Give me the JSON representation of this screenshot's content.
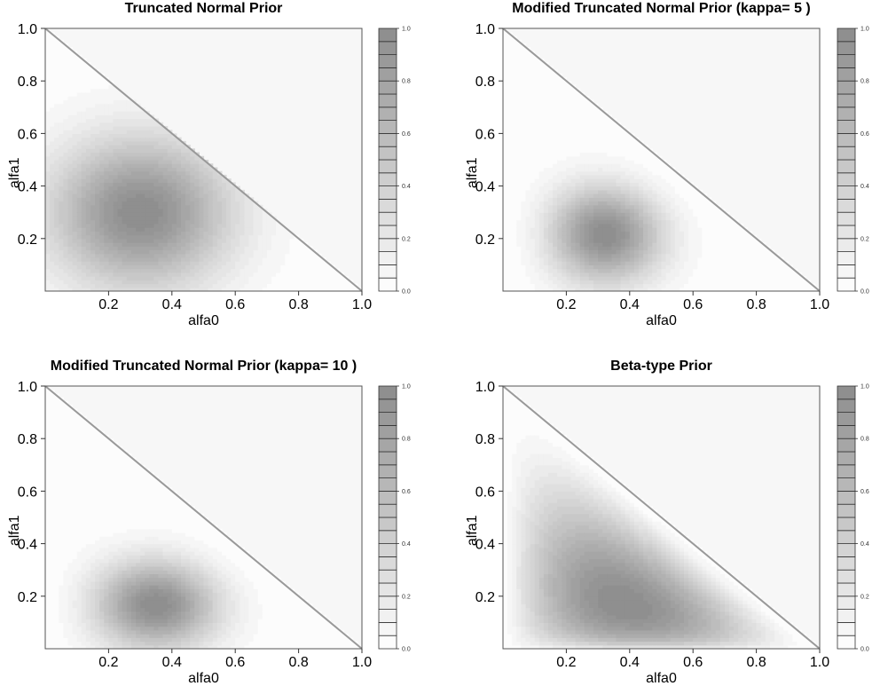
{
  "chart_data": [
    {
      "type": "contour",
      "title": "Truncated Normal Prior",
      "xlabel": "alfa0",
      "ylabel": "alfa1",
      "xlim": [
        0,
        1
      ],
      "ylim": [
        0,
        1
      ],
      "xticks": [
        "0.2",
        "0.4",
        "0.6",
        "0.8",
        "1.0"
      ],
      "yticks": [
        "0.2",
        "0.4",
        "0.6",
        "0.8",
        "1.0"
      ],
      "colorbar": {
        "levels": 20,
        "range": [
          0,
          1
        ],
        "ticks": [
          "0.0",
          "0.2",
          "0.4",
          "0.6",
          "0.8",
          "1.0"
        ]
      },
      "mode": {
        "x": 0.3,
        "y": 0.3
      },
      "constraint": "alfa0 + alfa1 <= 1"
    },
    {
      "type": "contour",
      "title": "Modified Truncated Normal Prior (kappa= 5 )",
      "xlabel": "alfa0",
      "ylabel": "alfa1",
      "xlim": [
        0,
        1
      ],
      "ylim": [
        0,
        1
      ],
      "xticks": [
        "0.2",
        "0.4",
        "0.6",
        "0.8",
        "1.0"
      ],
      "yticks": [
        "0.2",
        "0.4",
        "0.6",
        "0.8",
        "1.0"
      ],
      "colorbar": {
        "levels": 20,
        "range": [
          0,
          1
        ],
        "ticks": [
          "0.0",
          "0.2",
          "0.4",
          "0.6",
          "0.8",
          "1.0"
        ]
      },
      "mode": {
        "x": 0.33,
        "y": 0.22
      },
      "constraint": "alfa0 + alfa1 <= 1"
    },
    {
      "type": "contour",
      "title": "Modified Truncated Normal Prior (kappa= 10 )",
      "xlabel": "alfa0",
      "ylabel": "alfa1",
      "xlim": [
        0,
        1
      ],
      "ylim": [
        0,
        1
      ],
      "xticks": [
        "0.2",
        "0.4",
        "0.6",
        "0.8",
        "1.0"
      ],
      "yticks": [
        "0.2",
        "0.4",
        "0.6",
        "0.8",
        "1.0"
      ],
      "colorbar": {
        "levels": 20,
        "range": [
          0,
          1
        ],
        "ticks": [
          "0.0",
          "0.2",
          "0.4",
          "0.6",
          "0.8",
          "1.0"
        ]
      },
      "mode": {
        "x": 0.35,
        "y": 0.17
      },
      "constraint": "alfa0 + alfa1 <= 1"
    },
    {
      "type": "contour",
      "title": "Beta-type Prior",
      "xlabel": "alfa0",
      "ylabel": "alfa1",
      "xlim": [
        0,
        1
      ],
      "ylim": [
        0,
        1
      ],
      "xticks": [
        "0.2",
        "0.4",
        "0.6",
        "0.8",
        "1.0"
      ],
      "yticks": [
        "0.2",
        "0.4",
        "0.6",
        "0.8",
        "1.0"
      ],
      "colorbar": {
        "levels": 20,
        "range": [
          0,
          1
        ],
        "ticks": [
          "0.0",
          "0.2",
          "0.4",
          "0.6",
          "0.8",
          "1.0"
        ]
      },
      "mode": {
        "x": 0.5,
        "y": 0.15
      },
      "constraint": "alfa0 + alfa1 <= 1"
    }
  ],
  "colors": {
    "min": "#ffffff",
    "max": "#8c8c8c",
    "line": "#999999",
    "background": "#f7f7f7"
  }
}
